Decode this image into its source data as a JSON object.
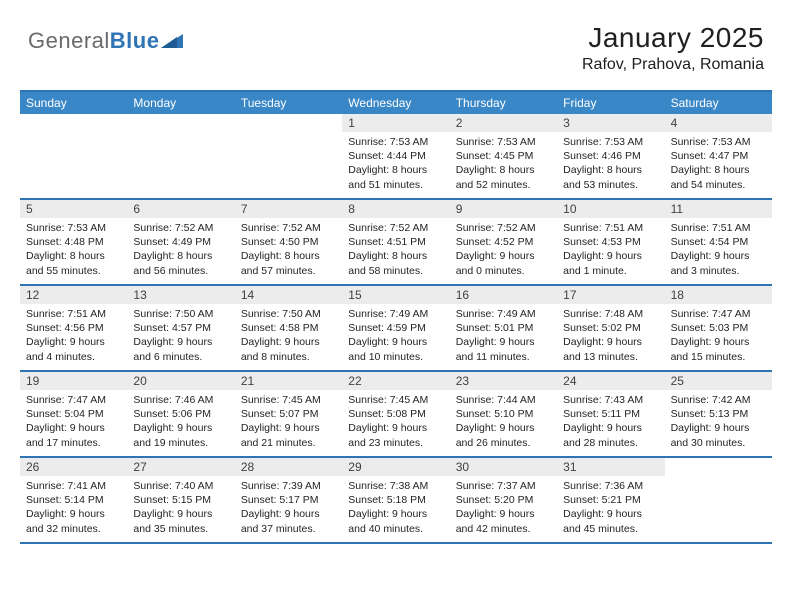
{
  "logo": {
    "general": "General",
    "blue": "Blue"
  },
  "header": {
    "month": "January 2025",
    "location": "Rafov, Prahova, Romania"
  },
  "colors": {
    "brand_blue": "#2f74b5",
    "header_bg": "#3a87c8",
    "header_fg": "#ffffff",
    "daynum_bg": "#ececec",
    "text": "#242424",
    "logo_gray": "#6a6a6a",
    "background": "#ffffff"
  },
  "calendar": {
    "type": "table",
    "columns": [
      "Sunday",
      "Monday",
      "Tuesday",
      "Wednesday",
      "Thursday",
      "Friday",
      "Saturday"
    ],
    "weeks": [
      [
        {
          "empty": true
        },
        {
          "empty": true
        },
        {
          "empty": true
        },
        {
          "num": "1",
          "sunrise": "7:53 AM",
          "sunset": "4:44 PM",
          "daylight": "8 hours and 51 minutes."
        },
        {
          "num": "2",
          "sunrise": "7:53 AM",
          "sunset": "4:45 PM",
          "daylight": "8 hours and 52 minutes."
        },
        {
          "num": "3",
          "sunrise": "7:53 AM",
          "sunset": "4:46 PM",
          "daylight": "8 hours and 53 minutes."
        },
        {
          "num": "4",
          "sunrise": "7:53 AM",
          "sunset": "4:47 PM",
          "daylight": "8 hours and 54 minutes."
        }
      ],
      [
        {
          "num": "5",
          "sunrise": "7:53 AM",
          "sunset": "4:48 PM",
          "daylight": "8 hours and 55 minutes."
        },
        {
          "num": "6",
          "sunrise": "7:52 AM",
          "sunset": "4:49 PM",
          "daylight": "8 hours and 56 minutes."
        },
        {
          "num": "7",
          "sunrise": "7:52 AM",
          "sunset": "4:50 PM",
          "daylight": "8 hours and 57 minutes."
        },
        {
          "num": "8",
          "sunrise": "7:52 AM",
          "sunset": "4:51 PM",
          "daylight": "8 hours and 58 minutes."
        },
        {
          "num": "9",
          "sunrise": "7:52 AM",
          "sunset": "4:52 PM",
          "daylight": "9 hours and 0 minutes."
        },
        {
          "num": "10",
          "sunrise": "7:51 AM",
          "sunset": "4:53 PM",
          "daylight": "9 hours and 1 minute."
        },
        {
          "num": "11",
          "sunrise": "7:51 AM",
          "sunset": "4:54 PM",
          "daylight": "9 hours and 3 minutes."
        }
      ],
      [
        {
          "num": "12",
          "sunrise": "7:51 AM",
          "sunset": "4:56 PM",
          "daylight": "9 hours and 4 minutes."
        },
        {
          "num": "13",
          "sunrise": "7:50 AM",
          "sunset": "4:57 PM",
          "daylight": "9 hours and 6 minutes."
        },
        {
          "num": "14",
          "sunrise": "7:50 AM",
          "sunset": "4:58 PM",
          "daylight": "9 hours and 8 minutes."
        },
        {
          "num": "15",
          "sunrise": "7:49 AM",
          "sunset": "4:59 PM",
          "daylight": "9 hours and 10 minutes."
        },
        {
          "num": "16",
          "sunrise": "7:49 AM",
          "sunset": "5:01 PM",
          "daylight": "9 hours and 11 minutes."
        },
        {
          "num": "17",
          "sunrise": "7:48 AM",
          "sunset": "5:02 PM",
          "daylight": "9 hours and 13 minutes."
        },
        {
          "num": "18",
          "sunrise": "7:47 AM",
          "sunset": "5:03 PM",
          "daylight": "9 hours and 15 minutes."
        }
      ],
      [
        {
          "num": "19",
          "sunrise": "7:47 AM",
          "sunset": "5:04 PM",
          "daylight": "9 hours and 17 minutes."
        },
        {
          "num": "20",
          "sunrise": "7:46 AM",
          "sunset": "5:06 PM",
          "daylight": "9 hours and 19 minutes."
        },
        {
          "num": "21",
          "sunrise": "7:45 AM",
          "sunset": "5:07 PM",
          "daylight": "9 hours and 21 minutes."
        },
        {
          "num": "22",
          "sunrise": "7:45 AM",
          "sunset": "5:08 PM",
          "daylight": "9 hours and 23 minutes."
        },
        {
          "num": "23",
          "sunrise": "7:44 AM",
          "sunset": "5:10 PM",
          "daylight": "9 hours and 26 minutes."
        },
        {
          "num": "24",
          "sunrise": "7:43 AM",
          "sunset": "5:11 PM",
          "daylight": "9 hours and 28 minutes."
        },
        {
          "num": "25",
          "sunrise": "7:42 AM",
          "sunset": "5:13 PM",
          "daylight": "9 hours and 30 minutes."
        }
      ],
      [
        {
          "num": "26",
          "sunrise": "7:41 AM",
          "sunset": "5:14 PM",
          "daylight": "9 hours and 32 minutes."
        },
        {
          "num": "27",
          "sunrise": "7:40 AM",
          "sunset": "5:15 PM",
          "daylight": "9 hours and 35 minutes."
        },
        {
          "num": "28",
          "sunrise": "7:39 AM",
          "sunset": "5:17 PM",
          "daylight": "9 hours and 37 minutes."
        },
        {
          "num": "29",
          "sunrise": "7:38 AM",
          "sunset": "5:18 PM",
          "daylight": "9 hours and 40 minutes."
        },
        {
          "num": "30",
          "sunrise": "7:37 AM",
          "sunset": "5:20 PM",
          "daylight": "9 hours and 42 minutes."
        },
        {
          "num": "31",
          "sunrise": "7:36 AM",
          "sunset": "5:21 PM",
          "daylight": "9 hours and 45 minutes."
        },
        {
          "empty": true
        }
      ]
    ],
    "labels": {
      "sunrise": "Sunrise:",
      "sunset": "Sunset:",
      "daylight": "Daylight:"
    }
  }
}
